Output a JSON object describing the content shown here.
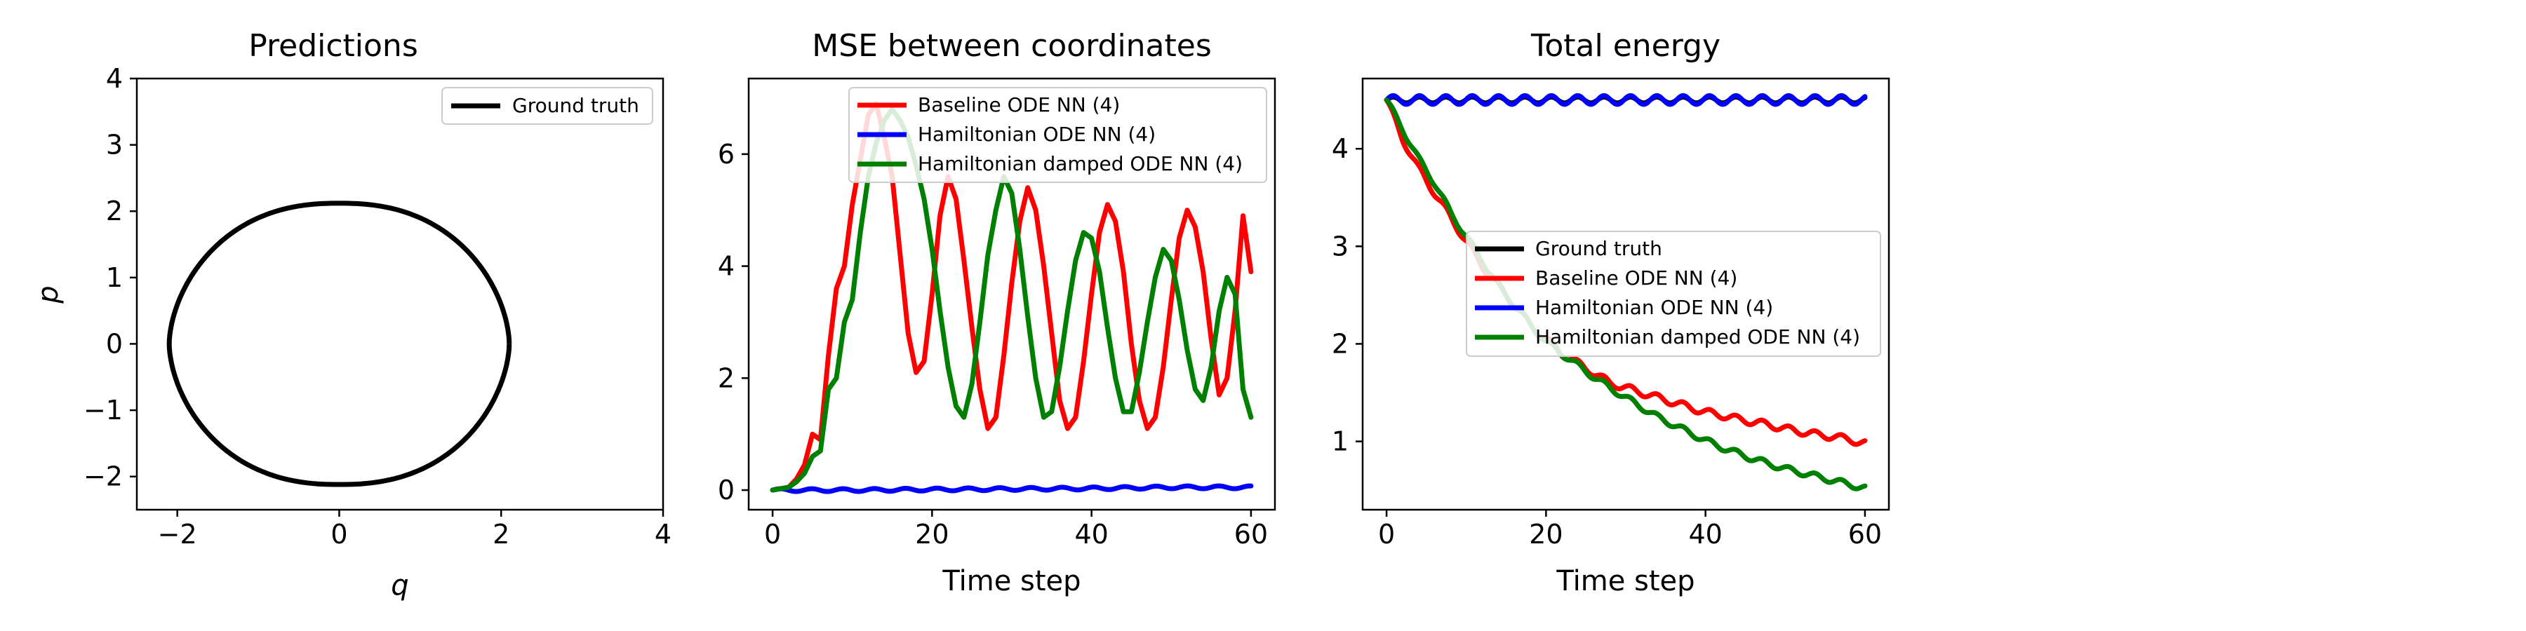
{
  "chart_data": [
    {
      "type": "line",
      "title": "Predictions",
      "xlabel": "q",
      "ylabel": "p",
      "xlim": [
        -2.5,
        4
      ],
      "ylim": [
        -2.5,
        4
      ],
      "xticks": [
        -2,
        0,
        2,
        4
      ],
      "yticks": [
        -2,
        -1,
        0,
        1,
        2,
        3,
        4
      ],
      "xtick_labels": [
        "−2",
        "0",
        "2",
        "4"
      ],
      "ytick_labels": [
        "−2",
        "−1",
        "0",
        "1",
        "2",
        "3",
        "4"
      ],
      "legend_position": "top-right",
      "series": [
        {
          "name": "Ground truth",
          "color": "#000000",
          "shape": "closed-curve",
          "q_extent": [
            -2.1,
            2.1
          ],
          "p_extent": [
            -2.12,
            2.12
          ]
        }
      ]
    },
    {
      "type": "line",
      "title": "MSE between coordinates",
      "xlabel": "Time step",
      "ylabel": "",
      "xlim": [
        -3,
        63
      ],
      "ylim": [
        -0.35,
        7.35
      ],
      "xticks": [
        0,
        20,
        40,
        60
      ],
      "yticks": [
        0,
        2,
        4,
        6
      ],
      "legend_position": "top-right",
      "series": [
        {
          "name": "Baseline ODE NN (4)",
          "color": "#ff0000",
          "x": [
            0,
            2,
            3,
            4,
            5,
            6,
            7,
            8,
            9,
            10,
            11,
            12,
            13,
            14,
            15,
            16,
            17,
            18,
            19,
            20,
            21,
            22,
            23,
            24,
            25,
            26,
            27,
            28,
            29,
            30,
            31,
            32,
            33,
            34,
            35,
            36,
            37,
            38,
            39,
            40,
            41,
            42,
            43,
            44,
            45,
            46,
            47,
            48,
            49,
            50,
            51,
            52,
            53,
            54,
            55,
            56,
            57,
            58,
            59,
            60
          ],
          "y": [
            0,
            0.05,
            0.2,
            0.45,
            1.0,
            0.9,
            2.4,
            3.6,
            4.0,
            5.1,
            5.9,
            6.7,
            6.9,
            6.3,
            5.6,
            4.2,
            2.8,
            2.1,
            2.3,
            3.5,
            4.9,
            5.6,
            5.2,
            4.1,
            2.9,
            1.8,
            1.1,
            1.3,
            2.4,
            3.7,
            4.8,
            5.4,
            5.0,
            4.0,
            2.8,
            1.6,
            1.1,
            1.3,
            2.3,
            3.5,
            4.6,
            5.1,
            4.8,
            3.9,
            2.6,
            1.6,
            1.1,
            1.3,
            2.2,
            3.4,
            4.5,
            5.0,
            4.7,
            3.9,
            2.7,
            1.7,
            2.0,
            3.2,
            4.9,
            3.9
          ]
        },
        {
          "name": "Hamiltonian ODE NN (4)",
          "color": "#0000ff",
          "x": [
            0,
            10,
            20,
            30,
            40,
            50,
            60
          ],
          "y": [
            0.0,
            0.0,
            0.01,
            0.02,
            0.03,
            0.05,
            0.05
          ]
        },
        {
          "name": "Hamiltonian damped ODE NN (4)",
          "color": "#008000",
          "x": [
            0,
            2,
            3,
            4,
            5,
            6,
            7,
            8,
            9,
            10,
            11,
            12,
            13,
            14,
            15,
            16,
            17,
            18,
            19,
            20,
            21,
            22,
            23,
            24,
            25,
            26,
            27,
            28,
            29,
            30,
            31,
            32,
            33,
            34,
            35,
            36,
            37,
            38,
            39,
            40,
            41,
            42,
            43,
            44,
            45,
            46,
            47,
            48,
            49,
            50,
            51,
            52,
            53,
            54,
            55,
            56,
            57,
            58,
            59,
            60
          ],
          "y": [
            0,
            0.05,
            0.15,
            0.3,
            0.6,
            0.7,
            1.8,
            2.0,
            3.0,
            3.4,
            4.6,
            5.6,
            6.2,
            6.6,
            6.8,
            6.6,
            6.3,
            5.8,
            5.2,
            4.3,
            3.2,
            2.2,
            1.5,
            1.3,
            1.9,
            3.0,
            4.2,
            5.0,
            5.6,
            5.3,
            4.3,
            3.1,
            2.0,
            1.3,
            1.4,
            2.2,
            3.2,
            4.1,
            4.6,
            4.5,
            3.9,
            2.9,
            2.0,
            1.4,
            1.4,
            2.1,
            3.0,
            3.8,
            4.3,
            4.1,
            3.4,
            2.5,
            1.8,
            1.6,
            2.2,
            3.2,
            3.8,
            3.5,
            1.8,
            1.3
          ]
        }
      ]
    },
    {
      "type": "line",
      "title": "Total energy",
      "xlabel": "Time step",
      "ylabel": "",
      "xlim": [
        -3,
        63
      ],
      "ylim": [
        0.3,
        4.72
      ],
      "xticks": [
        0,
        20,
        40,
        60
      ],
      "yticks": [
        1,
        2,
        3,
        4
      ],
      "legend_position": "center-right",
      "series": [
        {
          "name": "Ground truth",
          "color": "#000000",
          "x": [
            0,
            60
          ],
          "y": [
            4.5,
            4.5
          ]
        },
        {
          "name": "Baseline ODE NN (4)",
          "color": "#ff0000",
          "x": [
            0,
            2,
            4,
            6,
            8,
            10,
            12,
            14,
            16,
            18,
            20,
            22,
            24,
            26,
            28,
            30,
            32,
            34,
            36,
            38,
            40,
            42,
            44,
            46,
            48,
            50,
            52,
            54,
            56,
            58,
            60
          ],
          "y": [
            4.5,
            4.1,
            3.8,
            3.55,
            3.3,
            3.05,
            2.8,
            2.6,
            2.4,
            2.2,
            2.05,
            1.9,
            1.8,
            1.7,
            1.6,
            1.55,
            1.5,
            1.45,
            1.4,
            1.35,
            1.3,
            1.27,
            1.23,
            1.2,
            1.17,
            1.13,
            1.1,
            1.07,
            1.05,
            1.02,
            0.98
          ]
        },
        {
          "name": "Hamiltonian ODE NN (4)",
          "color": "#0000ff",
          "x": [
            0,
            60
          ],
          "y": [
            4.5,
            4.5
          ]
        },
        {
          "name": "Hamiltonian damped ODE NN (4)",
          "color": "#008000",
          "x": [
            0,
            2,
            4,
            6,
            8,
            10,
            12,
            14,
            16,
            18,
            20,
            22,
            24,
            26,
            28,
            30,
            32,
            34,
            36,
            38,
            40,
            42,
            44,
            46,
            48,
            50,
            52,
            54,
            56,
            58,
            60
          ],
          "y": [
            4.5,
            4.2,
            3.9,
            3.65,
            3.35,
            3.1,
            2.85,
            2.6,
            2.4,
            2.2,
            2.02,
            1.9,
            1.78,
            1.66,
            1.55,
            1.45,
            1.35,
            1.25,
            1.17,
            1.09,
            1.01,
            0.94,
            0.88,
            0.82,
            0.77,
            0.72,
            0.68,
            0.64,
            0.6,
            0.56,
            0.52
          ]
        }
      ]
    }
  ]
}
